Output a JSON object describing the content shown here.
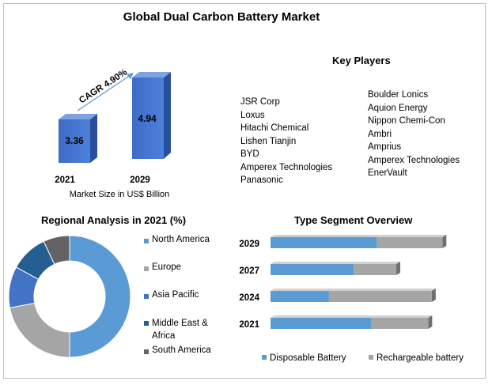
{
  "title": "Global Dual Carbon Battery Market",
  "market_size": {
    "label": "Market Size in US$ Billion",
    "cagr_label": "CAGR 4.90%"
  },
  "key_players": {
    "title": "Key Players",
    "left": [
      "JSR Corp",
      "Loxus",
      "Hitachi Chemical",
      "Lishen Tianjin",
      "BYD",
      "Amperex Technologies",
      "Panasonic"
    ],
    "right": [
      "Boulder Lonics",
      "Aquion Energy",
      "Nippon Chemi-Con",
      "Ambri",
      "Amprius",
      "Amperex Technologies",
      "EnerVault"
    ]
  },
  "regional": {
    "title": "Regional Analysis in 2021 (%)"
  },
  "type_segment": {
    "title": "Type Segment Overview"
  },
  "colors": {
    "blue": "#4a7ad0",
    "light_blue": "#5b9bd5",
    "gray": "#a5a5a5",
    "dark_blue": "#2e5f8a",
    "dark_gray": "#636363"
  },
  "chart_data": [
    {
      "type": "bar",
      "categories": [
        "2021",
        "2029"
      ],
      "values": [
        3.36,
        4.94
      ],
      "xlabel": "Market Size in US$ Billion",
      "annotation": "CAGR 4.90%"
    },
    {
      "type": "pie",
      "title": "Regional Analysis in 2021 (%)",
      "labels": [
        "North America",
        "Europe",
        "Asia Pacific",
        "Middle East & Africa",
        "South America"
      ],
      "values": [
        50,
        22,
        11,
        10,
        7
      ],
      "colors": [
        "#5b9bd5",
        "#a5a5a5",
        "#4472c4",
        "#255e91",
        "#636363"
      ]
    },
    {
      "type": "bar",
      "orientation": "horizontal",
      "stacked": true,
      "title": "Type Segment Overview",
      "categories": [
        "2029",
        "2027",
        "2024",
        "2021"
      ],
      "series": [
        {
          "name": "Disposable Battery",
          "values": [
            60,
            47,
            33,
            57
          ]
        },
        {
          "name": "Rechargeable battery",
          "values": [
            37,
            24,
            58,
            32
          ]
        }
      ]
    }
  ]
}
